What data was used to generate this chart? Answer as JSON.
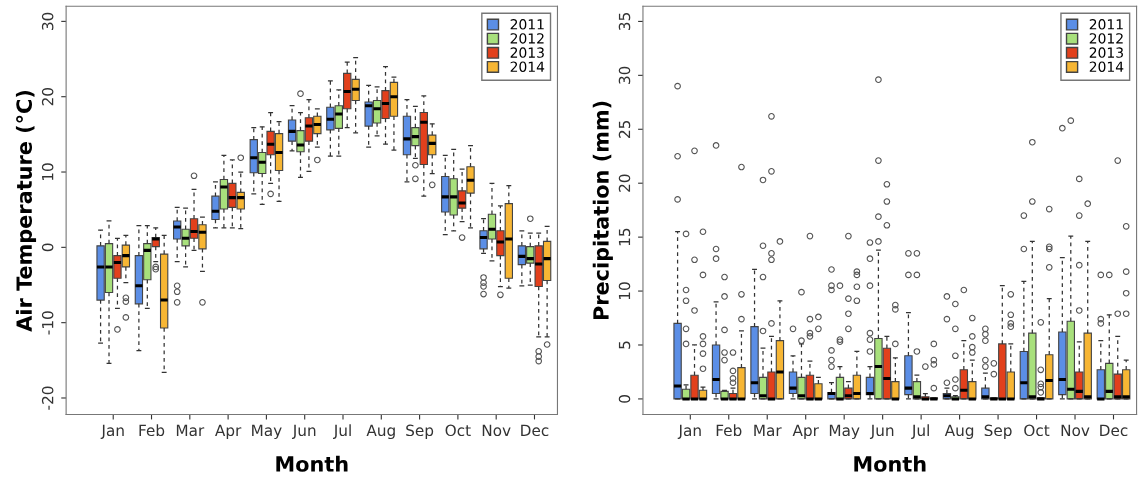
{
  "chart_data": [
    {
      "type": "box",
      "xlabel": "Month",
      "ylabel": "Air Temperature (°C)",
      "categories": [
        "Jan",
        "Feb",
        "Mar",
        "Apr",
        "May",
        "Jun",
        "Jul",
        "Aug",
        "Sep",
        "Oct",
        "Nov",
        "Dec"
      ],
      "ylim": [
        -22.2,
        32.0
      ],
      "yticks": [
        -20,
        -10,
        0,
        10,
        20,
        30
      ],
      "legend": "top right",
      "grid": false,
      "series": [
        {
          "name": "2011",
          "color": "#5b8ee6",
          "boxes": [
            {
              "low": -12.7,
              "q1": -7.0,
              "median": -2.6,
              "q3": 0.2,
              "high": 2.3
            },
            {
              "low": -13.7,
              "q1": -7.5,
              "median": -5.1,
              "q3": -1.1,
              "high": 2.9
            },
            {
              "low": -1.9,
              "q1": 1.1,
              "median": 2.7,
              "q3": 3.5,
              "high": 5.3,
              "outliers": [
                -5.1,
                -5.9,
                -7.3
              ]
            },
            {
              "low": 2.6,
              "q1": 3.7,
              "median": 4.8,
              "q3": 6.8,
              "high": 8.7
            },
            {
              "low": 7.1,
              "q1": 9.9,
              "median": 11.9,
              "q3": 14.3,
              "high": 15.9
            },
            {
              "low": 12.8,
              "q1": 14.1,
              "median": 15.4,
              "q3": 16.9,
              "high": 18.8
            },
            {
              "low": 12.1,
              "q1": 15.6,
              "median": 17.0,
              "q3": 18.6,
              "high": 22.1
            },
            {
              "low": 13.3,
              "q1": 16.1,
              "median": 18.8,
              "q3": 19.3,
              "high": 21.5
            },
            {
              "low": 8.7,
              "q1": 12.3,
              "median": 14.4,
              "q3": 17.4,
              "high": 19.6
            },
            {
              "low": 1.7,
              "q1": 4.7,
              "median": 6.7,
              "q3": 9.4,
              "high": 12.2
            },
            {
              "low": -0.8,
              "q1": -0.2,
              "median": 1.3,
              "q3": 2.2,
              "high": 3.8,
              "outliers": [
                -4.0,
                -4.7,
                -5.2,
                -6.2
              ]
            },
            {
              "low": -5.1,
              "q1": -2.3,
              "median": -1.2,
              "q3": 0.2,
              "high": 2.2
            }
          ]
        },
        {
          "name": "2012",
          "color": "#a8e07c",
          "boxes": [
            {
              "low": -15.4,
              "q1": -6.0,
              "median": -2.6,
              "q3": 0.5,
              "high": 3.5
            },
            {
              "low": -8.1,
              "q1": -4.3,
              "median": -0.4,
              "q3": 0.5,
              "high": 2.9
            },
            {
              "low": -2.6,
              "q1": 0.2,
              "median": 1.2,
              "q3": 2.4,
              "high": 5.2
            },
            {
              "low": 2.6,
              "q1": 5.1,
              "median": 8.0,
              "q3": 9.0,
              "high": 12.2
            },
            {
              "low": 5.7,
              "q1": 9.8,
              "median": 11.3,
              "q3": 12.6,
              "high": 16.0
            },
            {
              "low": 9.3,
              "q1": 12.7,
              "median": 13.6,
              "q3": 15.5,
              "high": 17.9,
              "outliers": [
                20.4
              ]
            },
            {
              "low": 12.1,
              "q1": 15.8,
              "median": 17.7,
              "q3": 18.8,
              "high": 20.9
            },
            {
              "low": 14.8,
              "q1": 16.5,
              "median": 18.4,
              "q3": 19.5,
              "high": 21.3
            },
            {
              "low": 11.8,
              "q1": 13.5,
              "median": 14.7,
              "q3": 15.9,
              "high": 18.7,
              "outliers": [
                10.9,
                9.1
              ]
            },
            {
              "low": 2.2,
              "q1": 4.3,
              "median": 6.7,
              "q3": 9.1,
              "high": 13.0
            },
            {
              "low": -1.8,
              "q1": 1.1,
              "median": 2.4,
              "q3": 4.4,
              "high": 8.5
            },
            {
              "low": -5.0,
              "q1": -2.1,
              "median": -1.5,
              "q3": 0.1,
              "high": 1.9,
              "outliers": [
                3.8
              ]
            }
          ]
        },
        {
          "name": "2013",
          "color": "#e2401c",
          "boxes": [
            {
              "low": -8.1,
              "q1": -4.1,
              "median": -2.0,
              "q3": -1.1,
              "high": 1.2,
              "outliers": [
                -10.9
              ]
            },
            {
              "low": -1.9,
              "q1": 0.1,
              "median": 1.1,
              "q3": 1.3,
              "high": 2.6,
              "outliers": [
                -2.6,
                -2.9
              ]
            },
            {
              "low": -0.4,
              "q1": 1.2,
              "median": 2.1,
              "q3": 3.8,
              "high": 7.7,
              "outliers": [
                9.5
              ]
            },
            {
              "low": 2.6,
              "q1": 5.3,
              "median": 6.6,
              "q3": 8.5,
              "high": 11.6
            },
            {
              "low": 8.5,
              "q1": 12.3,
              "median": 13.7,
              "q3": 15.4,
              "high": 17.9,
              "outliers": [
                7.1
              ]
            },
            {
              "low": 10.1,
              "q1": 14.1,
              "median": 16.1,
              "q3": 17.2,
              "high": 19.6
            },
            {
              "low": 15.9,
              "q1": 18.4,
              "median": 20.7,
              "q3": 23.1,
              "high": 24.6
            },
            {
              "low": 13.7,
              "q1": 17.1,
              "median": 19.1,
              "q3": 20.8,
              "high": 24.0
            },
            {
              "low": 6.8,
              "q1": 11.0,
              "median": 16.6,
              "q3": 17.9,
              "high": 20.1
            },
            {
              "low": 3.4,
              "q1": 5.2,
              "median": 5.9,
              "q3": 7.5,
              "high": 10.4,
              "outliers": [
                1.3
              ]
            },
            {
              "low": -5.2,
              "q1": -1.1,
              "median": 0.7,
              "q3": 2.2,
              "high": 5.5,
              "outliers": [
                -6.3
              ]
            },
            {
              "low": -11.9,
              "q1": -5.2,
              "median": -2.2,
              "q3": 0.2,
              "high": 1.9,
              "outliers": [
                -13.8,
                -14.5,
                -15.1
              ]
            }
          ]
        },
        {
          "name": "2014",
          "color": "#f7b634",
          "boxes": [
            {
              "low": -4.7,
              "q1": -2.6,
              "median": -1.1,
              "q3": 0.3,
              "high": 1.6,
              "outliers": [
                -6.7,
                -7.2,
                -9.3
              ]
            },
            {
              "low": -16.6,
              "q1": -10.7,
              "median": -7.0,
              "q3": -0.9,
              "high": 1.6
            },
            {
              "low": -3.2,
              "q1": -0.2,
              "median": 2.0,
              "q3": 3.0,
              "high": 4.0,
              "outliers": [
                -7.3
              ]
            },
            {
              "low": 2.5,
              "q1": 5.1,
              "median": 6.6,
              "q3": 7.3,
              "high": 10.0,
              "outliers": [
                11.9
              ]
            },
            {
              "low": 6.1,
              "q1": 10.2,
              "median": 12.6,
              "q3": 15.1,
              "high": 16.7
            },
            {
              "low": 13.3,
              "q1": 15.1,
              "median": 16.3,
              "q3": 17.4,
              "high": 18.4,
              "outliers": [
                11.6
              ]
            },
            {
              "low": 15.2,
              "q1": 19.5,
              "median": 21.0,
              "q3": 22.3,
              "high": 25.2
            },
            {
              "low": 12.9,
              "q1": 17.4,
              "median": 20.0,
              "q3": 21.9,
              "high": 22.6
            },
            {
              "low": 9.8,
              "q1": 12.3,
              "median": 13.8,
              "q3": 14.9,
              "high": 16.4,
              "outliers": [
                8.3
              ]
            },
            {
              "low": 2.6,
              "q1": 7.2,
              "median": 8.9,
              "q3": 10.7,
              "high": 13.5
            },
            {
              "low": -5.4,
              "q1": -4.1,
              "median": 1.1,
              "q3": 5.8,
              "high": 8.2
            },
            {
              "low": -11.9,
              "q1": -4.4,
              "median": -1.5,
              "q3": 0.8,
              "high": 2.8,
              "outliers": [
                -12.9
              ]
            }
          ]
        }
      ]
    },
    {
      "type": "box",
      "xlabel": "Month",
      "ylabel": "Precipitation (mm)",
      "categories": [
        "Jan",
        "Feb",
        "Mar",
        "Apr",
        "May",
        "Jun",
        "Jul",
        "Aug",
        "Sep",
        "Oct",
        "Nov",
        "Dec"
      ],
      "ylim": [
        -1.45,
        36.4
      ],
      "yticks": [
        0,
        5,
        10,
        15,
        20,
        25,
        30,
        35
      ],
      "legend": "top right",
      "grid": false,
      "series": [
        {
          "name": "2011",
          "color": "#5b8ee6",
          "boxes": [
            {
              "low": 0,
              "q1": 0,
              "median": 1.2,
              "q3": 7.0,
              "high": 15.5,
              "outliers": [
                18.5,
                22.5,
                29.0
              ]
            },
            {
              "low": 0,
              "q1": 0.5,
              "median": 1.8,
              "q3": 5.0,
              "high": 9.0,
              "outliers": [
                13.0,
                13.9,
                23.5
              ]
            },
            {
              "low": 0,
              "q1": 0.5,
              "median": 1.5,
              "q3": 6.7,
              "high": 12.0
            },
            {
              "low": 0,
              "q1": 0.5,
              "median": 1.0,
              "q3": 2.5,
              "high": 4.0,
              "outliers": [
                6.5
              ]
            },
            {
              "low": 0,
              "q1": 0,
              "median": 0.5,
              "q3": 0.6,
              "high": 1.5,
              "outliers": [
                3.0,
                3.6,
                4.5,
                10.1,
                10.5,
                12.0
              ]
            },
            {
              "low": 0,
              "q1": 0.4,
              "median": 0.5,
              "q3": 2.0,
              "high": 3.0,
              "outliers": [
                4.4,
                5.5,
                6.1,
                10.5,
                13.0,
                14.5
              ]
            },
            {
              "low": 0,
              "q1": 0.4,
              "median": 1.0,
              "q3": 4.0,
              "high": 8.0,
              "outliers": [
                11.5,
                13.5
              ]
            },
            {
              "low": 0,
              "q1": 0,
              "median": 0.3,
              "q3": 0.5,
              "high": 1.0,
              "outliers": [
                1.5,
                7.4,
                9.5
              ]
            },
            {
              "low": 0,
              "q1": 0,
              "median": 0.2,
              "q3": 1.0,
              "high": 2.4,
              "outliers": [
                3.0,
                3.6,
                5.4,
                6.0,
                6.5
              ]
            },
            {
              "low": 0,
              "q1": 0,
              "median": 1.5,
              "q3": 4.4,
              "high": 10.9,
              "outliers": [
                13.9,
                17.0
              ]
            },
            {
              "low": 0,
              "q1": 0.4,
              "median": 1.8,
              "q3": 6.2,
              "high": 13.1,
              "outliers": [
                25.1
              ]
            },
            {
              "low": 0,
              "q1": 0,
              "median": 0,
              "q3": 2.7,
              "high": 5.4,
              "outliers": [
                7.0,
                7.4,
                11.5
              ]
            }
          ]
        },
        {
          "name": "2012",
          "color": "#a8e07c",
          "boxes": [
            {
              "low": 0,
              "q1": 0,
              "median": 0,
              "q3": 0.9,
              "high": 1.3,
              "outliers": [
                5.1,
                6.5,
                9.1,
                10.1,
                15.3
              ]
            },
            {
              "low": 0,
              "q1": 0,
              "median": 0,
              "q3": 0.7,
              "high": 0.8,
              "outliers": [
                3.6,
                4.3,
                6.4,
                9.5,
                11.3
              ]
            },
            {
              "low": 0,
              "q1": 0,
              "median": 0.3,
              "q3": 2.0,
              "high": 4.7,
              "outliers": [
                6.3,
                11.3,
                14.2,
                20.3
              ]
            },
            {
              "low": 0,
              "q1": 0,
              "median": 0.3,
              "q3": 2.0,
              "high": 5.1,
              "outliers": [
                5.4,
                9.9
              ]
            },
            {
              "low": 0,
              "q1": 0,
              "median": 0,
              "q3": 2.0,
              "high": 3.0,
              "outliers": [
                5.3,
                5.5,
                10.5
              ]
            },
            {
              "low": 0,
              "q1": 0,
              "median": 3.0,
              "q3": 5.6,
              "high": 13.8,
              "outliers": [
                14.6,
                16.9,
                22.1,
                29.6
              ]
            },
            {
              "low": 0,
              "q1": 0,
              "median": 0.2,
              "q3": 1.6,
              "high": 2.2,
              "outliers": [
                4.4,
                11.5,
                13.5
              ]
            },
            {
              "low": 0,
              "q1": 0,
              "median": 0,
              "q3": 0.2,
              "high": 0.3,
              "outliers": [
                1.0,
                1.8,
                4.0,
                6.5,
                8.8
              ]
            },
            {
              "low": 0,
              "q1": 0,
              "median": 0,
              "q3": 0.1,
              "high": 0.1,
              "outliers": [
                2.3,
                3.3
              ]
            },
            {
              "low": 0,
              "q1": 0,
              "median": 0.2,
              "q3": 6.1,
              "high": 14.6,
              "outliers": [
                18.3,
                23.8
              ]
            },
            {
              "low": 0,
              "q1": 0,
              "median": 0.9,
              "q3": 7.2,
              "high": 15.1,
              "outliers": [
                25.8
              ]
            },
            {
              "low": 0,
              "q1": 0,
              "median": 0.7,
              "q3": 3.3,
              "high": 7.8,
              "outliers": [
                11.5
              ]
            }
          ]
        },
        {
          "name": "2013",
          "color": "#e2401c",
          "boxes": [
            {
              "low": 0,
              "q1": 0,
              "median": 0,
              "q3": 2.2,
              "high": 5.0,
              "outliers": [
                8.2,
                12.9,
                23.0
              ]
            },
            {
              "low": 0,
              "q1": 0,
              "median": 0,
              "q3": 0.5,
              "high": 1.0,
              "outliers": [
                1.5,
                1.9,
                2.6,
                4.3
              ]
            },
            {
              "low": 0,
              "q1": 0,
              "median": 0,
              "q3": 2.5,
              "high": 5.8,
              "outliers": [
                7.0,
                12.9,
                13.5,
                21.1,
                26.2
              ]
            },
            {
              "low": 0,
              "q1": 0,
              "median": 0,
              "q3": 2.2,
              "high": 3.5,
              "outliers": [
                5.8,
                6.1,
                7.4,
                15.1
              ]
            },
            {
              "low": 0,
              "q1": 0,
              "median": 0.3,
              "q3": 1.0,
              "high": 1.6,
              "outliers": [
                6.5,
                7.9,
                9.3,
                15.1
              ]
            },
            {
              "low": 0,
              "q1": 0,
              "median": 1.9,
              "q3": 4.7,
              "high": 5.8,
              "outliers": [
                16.1,
                18.3,
                19.9
              ]
            },
            {
              "low": 0,
              "q1": 0,
              "median": 0,
              "q3": 0.2,
              "high": 0.5,
              "outliers": [
                3.0
              ]
            },
            {
              "low": 0,
              "q1": 0,
              "median": 0.8,
              "q3": 2.7,
              "high": 5.4,
              "outliers": [
                10.1
              ]
            },
            {
              "low": 0,
              "q1": 0,
              "median": 0,
              "q3": 5.1,
              "high": 10.5
            },
            {
              "low": 0,
              "q1": 0,
              "median": 0,
              "q3": 0.1,
              "high": 0.1,
              "outliers": [
                0.6,
                1.1,
                1.4,
                2.7,
                7.1
              ]
            },
            {
              "low": 0,
              "q1": 0,
              "median": 0.7,
              "q3": 2.5,
              "high": 5.3,
              "outliers": [
                8.2,
                12.4,
                17.0,
                20.4
              ]
            },
            {
              "low": 0,
              "q1": 0,
              "median": 0.2,
              "q3": 2.3,
              "high": 5.8,
              "outliers": [
                7.9,
                22.1
              ]
            }
          ]
        },
        {
          "name": "2014",
          "color": "#f7b634",
          "boxes": [
            {
              "low": 0,
              "q1": 0,
              "median": 0,
              "q3": 0.8,
              "high": 1.1,
              "outliers": [
                2.8,
                4.2,
                5.1,
                5.8,
                11.5,
                15.5
              ]
            },
            {
              "low": 0,
              "q1": 0,
              "median": 0,
              "q3": 2.9,
              "high": 6.3,
              "outliers": [
                7.4,
                9.7,
                21.5
              ]
            },
            {
              "low": 0,
              "q1": 0,
              "median": 2.5,
              "q3": 5.4,
              "high": 9.1,
              "outliers": [
                14.6
              ]
            },
            {
              "low": 0,
              "q1": 0,
              "median": 0,
              "q3": 1.4,
              "high": 2.0,
              "outliers": [
                6.5,
                7.6
              ]
            },
            {
              "low": 0,
              "q1": 0,
              "median": 0.5,
              "q3": 2.2,
              "high": 4.4,
              "outliers": [
                9.1,
                10.4,
                11.5,
                11.8
              ]
            },
            {
              "low": 0,
              "q1": 0,
              "median": 0,
              "q3": 1.6,
              "high": 3.8,
              "outliers": [
                5.1,
                8.3,
                8.7
              ]
            },
            {
              "low": 0,
              "q1": 0,
              "median": 0,
              "q3": 0.1,
              "high": 0.1,
              "outliers": [
                1.0,
                3.2,
                3.6,
                5.1
              ]
            },
            {
              "low": 0,
              "q1": 0,
              "median": 0,
              "q3": 1.6,
              "high": 3.6,
              "outliers": [
                4.3,
                4.8,
                5.8,
                7.5
              ]
            },
            {
              "low": 0,
              "q1": 0,
              "median": 0,
              "q3": 2.5,
              "high": 5.1,
              "outliers": [
                6.7,
                7.0,
                7.8,
                9.7
              ]
            },
            {
              "low": 0,
              "q1": 0,
              "median": 1.7,
              "q3": 4.1,
              "high": 9.3,
              "outliers": [
                12.2,
                13.9,
                14.1,
                17.6
              ]
            },
            {
              "low": 0,
              "q1": 0,
              "median": 0.2,
              "q3": 6.1,
              "high": 14.6,
              "outliers": [
                18.1
              ]
            },
            {
              "low": 0,
              "q1": 0,
              "median": 0.2,
              "q3": 2.7,
              "high": 3.6,
              "outliers": [
                7.9,
                9.8,
                11.8,
                16.0
              ]
            }
          ]
        }
      ]
    }
  ]
}
